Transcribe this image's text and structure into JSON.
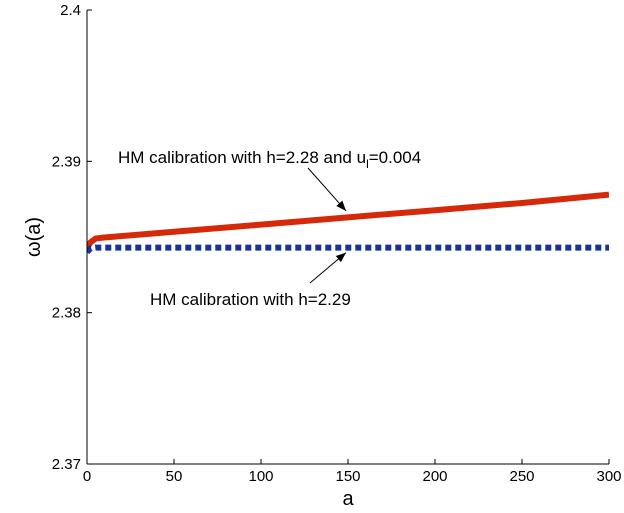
{
  "chart_data": {
    "type": "line",
    "title": "",
    "xlabel": "a",
    "ylabel": "ω(a)",
    "xlim": [
      0,
      300
    ],
    "ylim": [
      2.37,
      2.4
    ],
    "xticks": [
      0,
      50,
      100,
      150,
      200,
      250,
      300
    ],
    "yticks": [
      2.37,
      2.38,
      2.39,
      2.4
    ],
    "xtick_labels": [
      "0",
      "50",
      "100",
      "150",
      "200",
      "250",
      "300"
    ],
    "ytick_labels": [
      "2.37",
      "2.38",
      "2.39",
      "2.4"
    ],
    "grid": false,
    "series": [
      {
        "color": "#d42a0a",
        "style": "solid",
        "x": [
          0,
          2,
          5,
          10,
          50,
          100,
          150,
          200,
          250,
          300
        ],
        "y": [
          2.3843,
          2.38465,
          2.3849,
          2.38497,
          2.38535,
          2.38582,
          2.3863,
          2.38677,
          2.38725,
          2.3878
        ]
      },
      {
        "color": "#1a3393",
        "style": "dotted",
        "x": [
          0,
          2,
          5,
          10,
          50,
          100,
          150,
          200,
          250,
          300
        ],
        "y": [
          2.384,
          2.38425,
          2.3843,
          2.3843,
          2.3843,
          2.3843,
          2.3843,
          2.3843,
          2.3843,
          2.3843
        ]
      }
    ],
    "annotations": [
      {
        "text_main": "HM calibration with h=2.28 and u",
        "text_sub": "l",
        "text_tail": "=0.004",
        "arrow_to": [
          150,
          2.3864
        ]
      },
      {
        "text_main": "HM calibration with h=2.29",
        "arrow_to": [
          150,
          2.3843
        ]
      }
    ]
  }
}
